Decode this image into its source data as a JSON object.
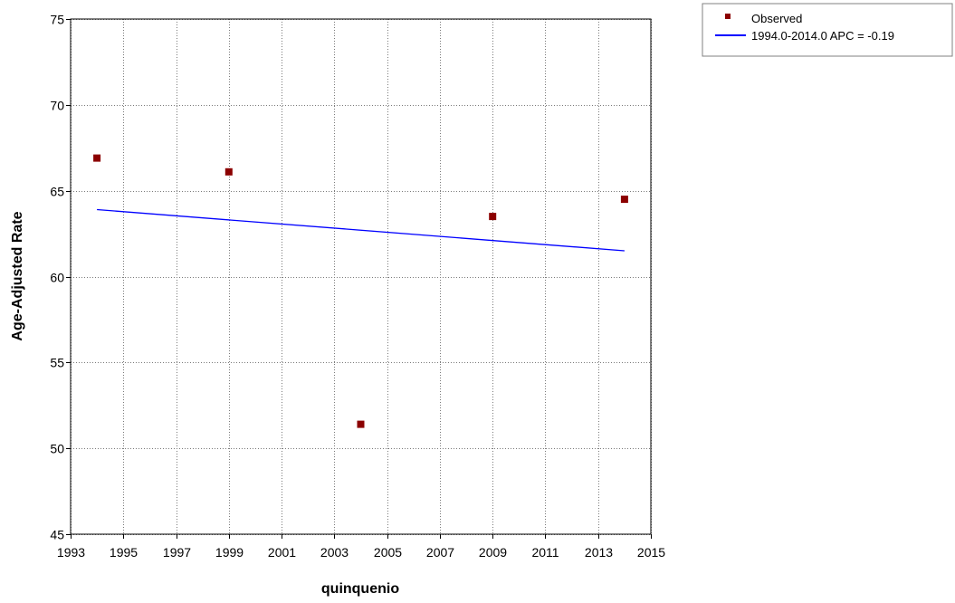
{
  "chart_data": {
    "type": "scatter",
    "title": "",
    "xlabel": "quinquenio",
    "ylabel": "Age-Adjusted Rate",
    "xlim": [
      1993,
      2015
    ],
    "ylim": [
      45,
      75
    ],
    "x_ticks": [
      1993,
      1995,
      1997,
      1999,
      2001,
      2003,
      2005,
      2007,
      2009,
      2011,
      2013,
      2015
    ],
    "y_ticks": [
      45,
      50,
      55,
      60,
      65,
      70,
      75
    ],
    "grid": true,
    "legend_position": "top-right, outside plot",
    "series": [
      {
        "name": "Observed",
        "kind": "markers",
        "marker": "square",
        "color": "#8b0000",
        "x": [
          1994,
          1999,
          2004,
          2009,
          2014
        ],
        "y": [
          66.9,
          66.1,
          51.4,
          63.5,
          64.5
        ]
      },
      {
        "name": "1994.0-2014.0 APC  = -0.19",
        "kind": "line",
        "color": "#0000ff",
        "x": [
          1994,
          2014
        ],
        "y": [
          63.9,
          61.5
        ]
      }
    ]
  }
}
